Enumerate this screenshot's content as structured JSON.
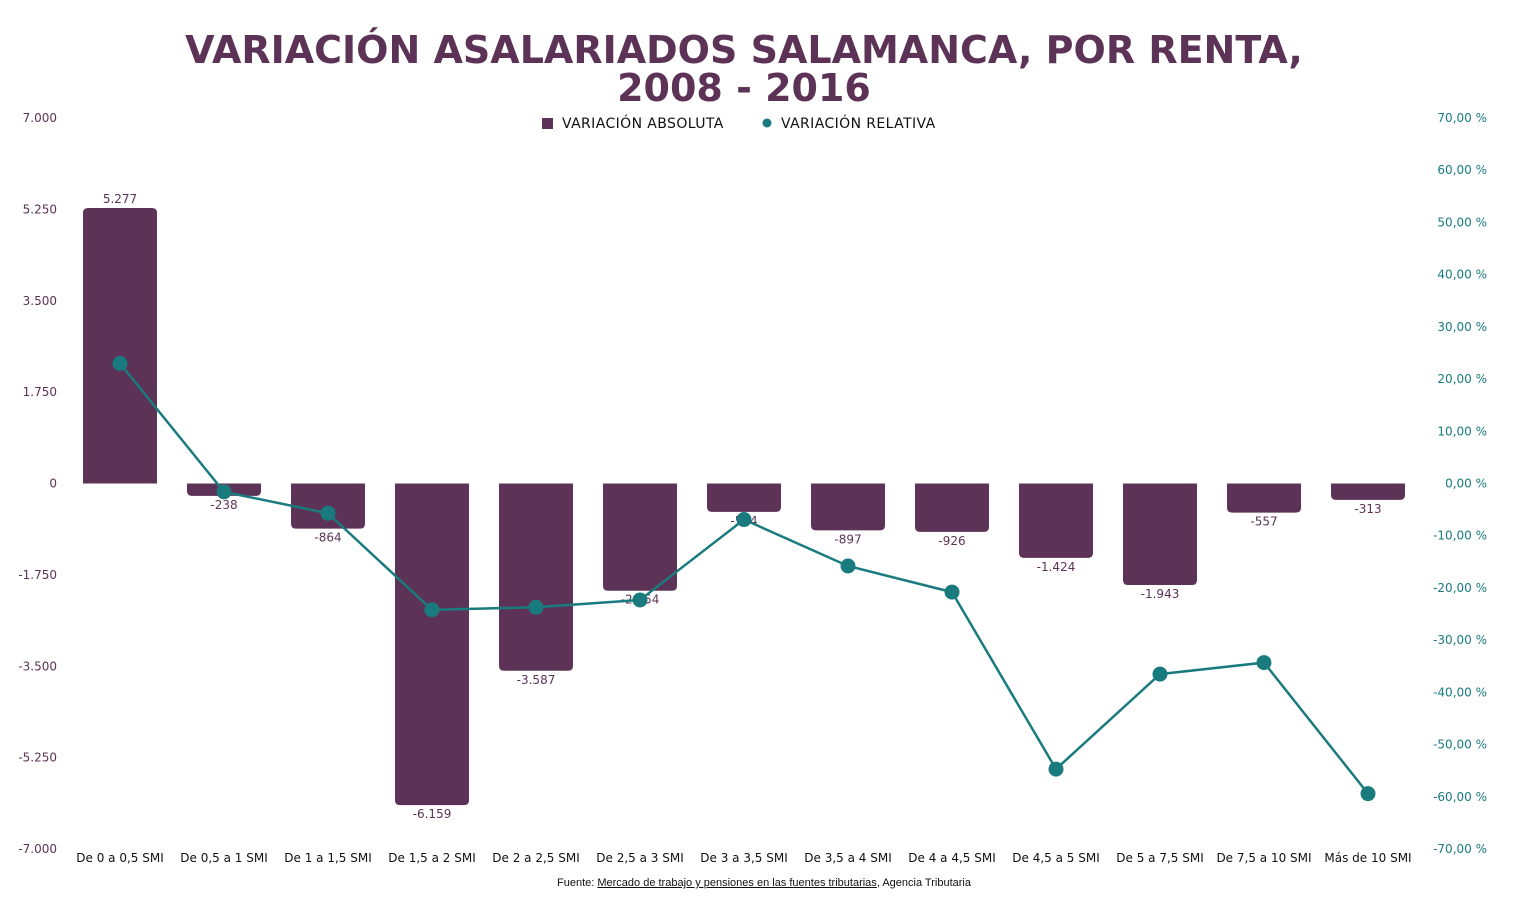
{
  "chart_data": {
    "type": "bar+line",
    "title_lines": [
      "VARIACIÓN ASALARIADOS SALAMANCA, POR RENTA,",
      "2008 - 2016"
    ],
    "legend": [
      "VARIACIÓN ABSOLUTA",
      "VARIACIÓN RELATIVA"
    ],
    "legend_placement": "top-center",
    "categories": [
      "De 0 a 0,5 SMI",
      "De 0,5 a 1 SMI",
      "De 1 a 1,5 SMI",
      "De 1,5 a 2 SMI",
      "De 2 a 2,5 SMI",
      "De 2,5 a 3 SMI",
      "De 3 a 3,5 SMI",
      "De 3,5 a 4 SMI",
      "De 4 a 4,5 SMI",
      "De 4,5 a 5 SMI",
      "De 5 a 7,5 SMI",
      "De 7,5 a 10 SMI",
      "Más de 10 SMI"
    ],
    "series": [
      {
        "name": "VARIACIÓN ABSOLUTA",
        "type": "bar",
        "axis": "left",
        "color": "#5c3356",
        "values": [
          5277,
          -238,
          -864,
          -6159,
          -3587,
          -2054,
          -544,
          -897,
          -926,
          -1424,
          -1943,
          -557,
          -313
        ],
        "labels": [
          "5.277",
          "-238",
          "-864",
          "-6.159",
          "-3.587",
          "-2.054",
          "-544",
          "-897",
          "-926",
          "-1.424",
          "-1.943",
          "-557",
          "-313"
        ]
      },
      {
        "name": "VARIACIÓN RELATIVA",
        "type": "line",
        "axis": "right",
        "color": "#1a7b7f",
        "values": [
          23.0,
          -1.6,
          -5.7,
          -24.2,
          -23.7,
          -22.3,
          -6.9,
          -15.8,
          -20.8,
          -54.7,
          -36.5,
          -34.3,
          -59.4
        ]
      }
    ],
    "y_left": {
      "range": [
        -7000,
        7000
      ],
      "ticks": [
        7000,
        5250,
        3500,
        1750,
        0,
        -1750,
        -3500,
        -5250,
        -7000
      ],
      "tick_labels": [
        "7.000",
        "5.250",
        "3.500",
        "1.750",
        "0",
        "-1.750",
        "-3.500",
        "-5.250",
        "-7.000"
      ]
    },
    "y_right": {
      "range": [
        -70,
        70
      ],
      "ticks": [
        70,
        60,
        50,
        40,
        30,
        20,
        10,
        0,
        -10,
        -20,
        -30,
        -40,
        -50,
        -60,
        -70
      ],
      "tick_labels": [
        "70,00 %",
        "60,00 %",
        "50,00 %",
        "40,00 %",
        "30,00 %",
        "20,00 %",
        "10,00 %",
        "0,00 %",
        "-10,00 %",
        "-20,00 %",
        "-30,00 %",
        "-40,00 %",
        "-50,00 %",
        "-60,00 %",
        "-70,00 %"
      ]
    },
    "grid": false
  },
  "source": {
    "prefix": "Fuente: ",
    "link": "Mercado de trabajo y pensiones en las fuentes tributarias",
    "suffix": ", Agencia Tributaria"
  }
}
